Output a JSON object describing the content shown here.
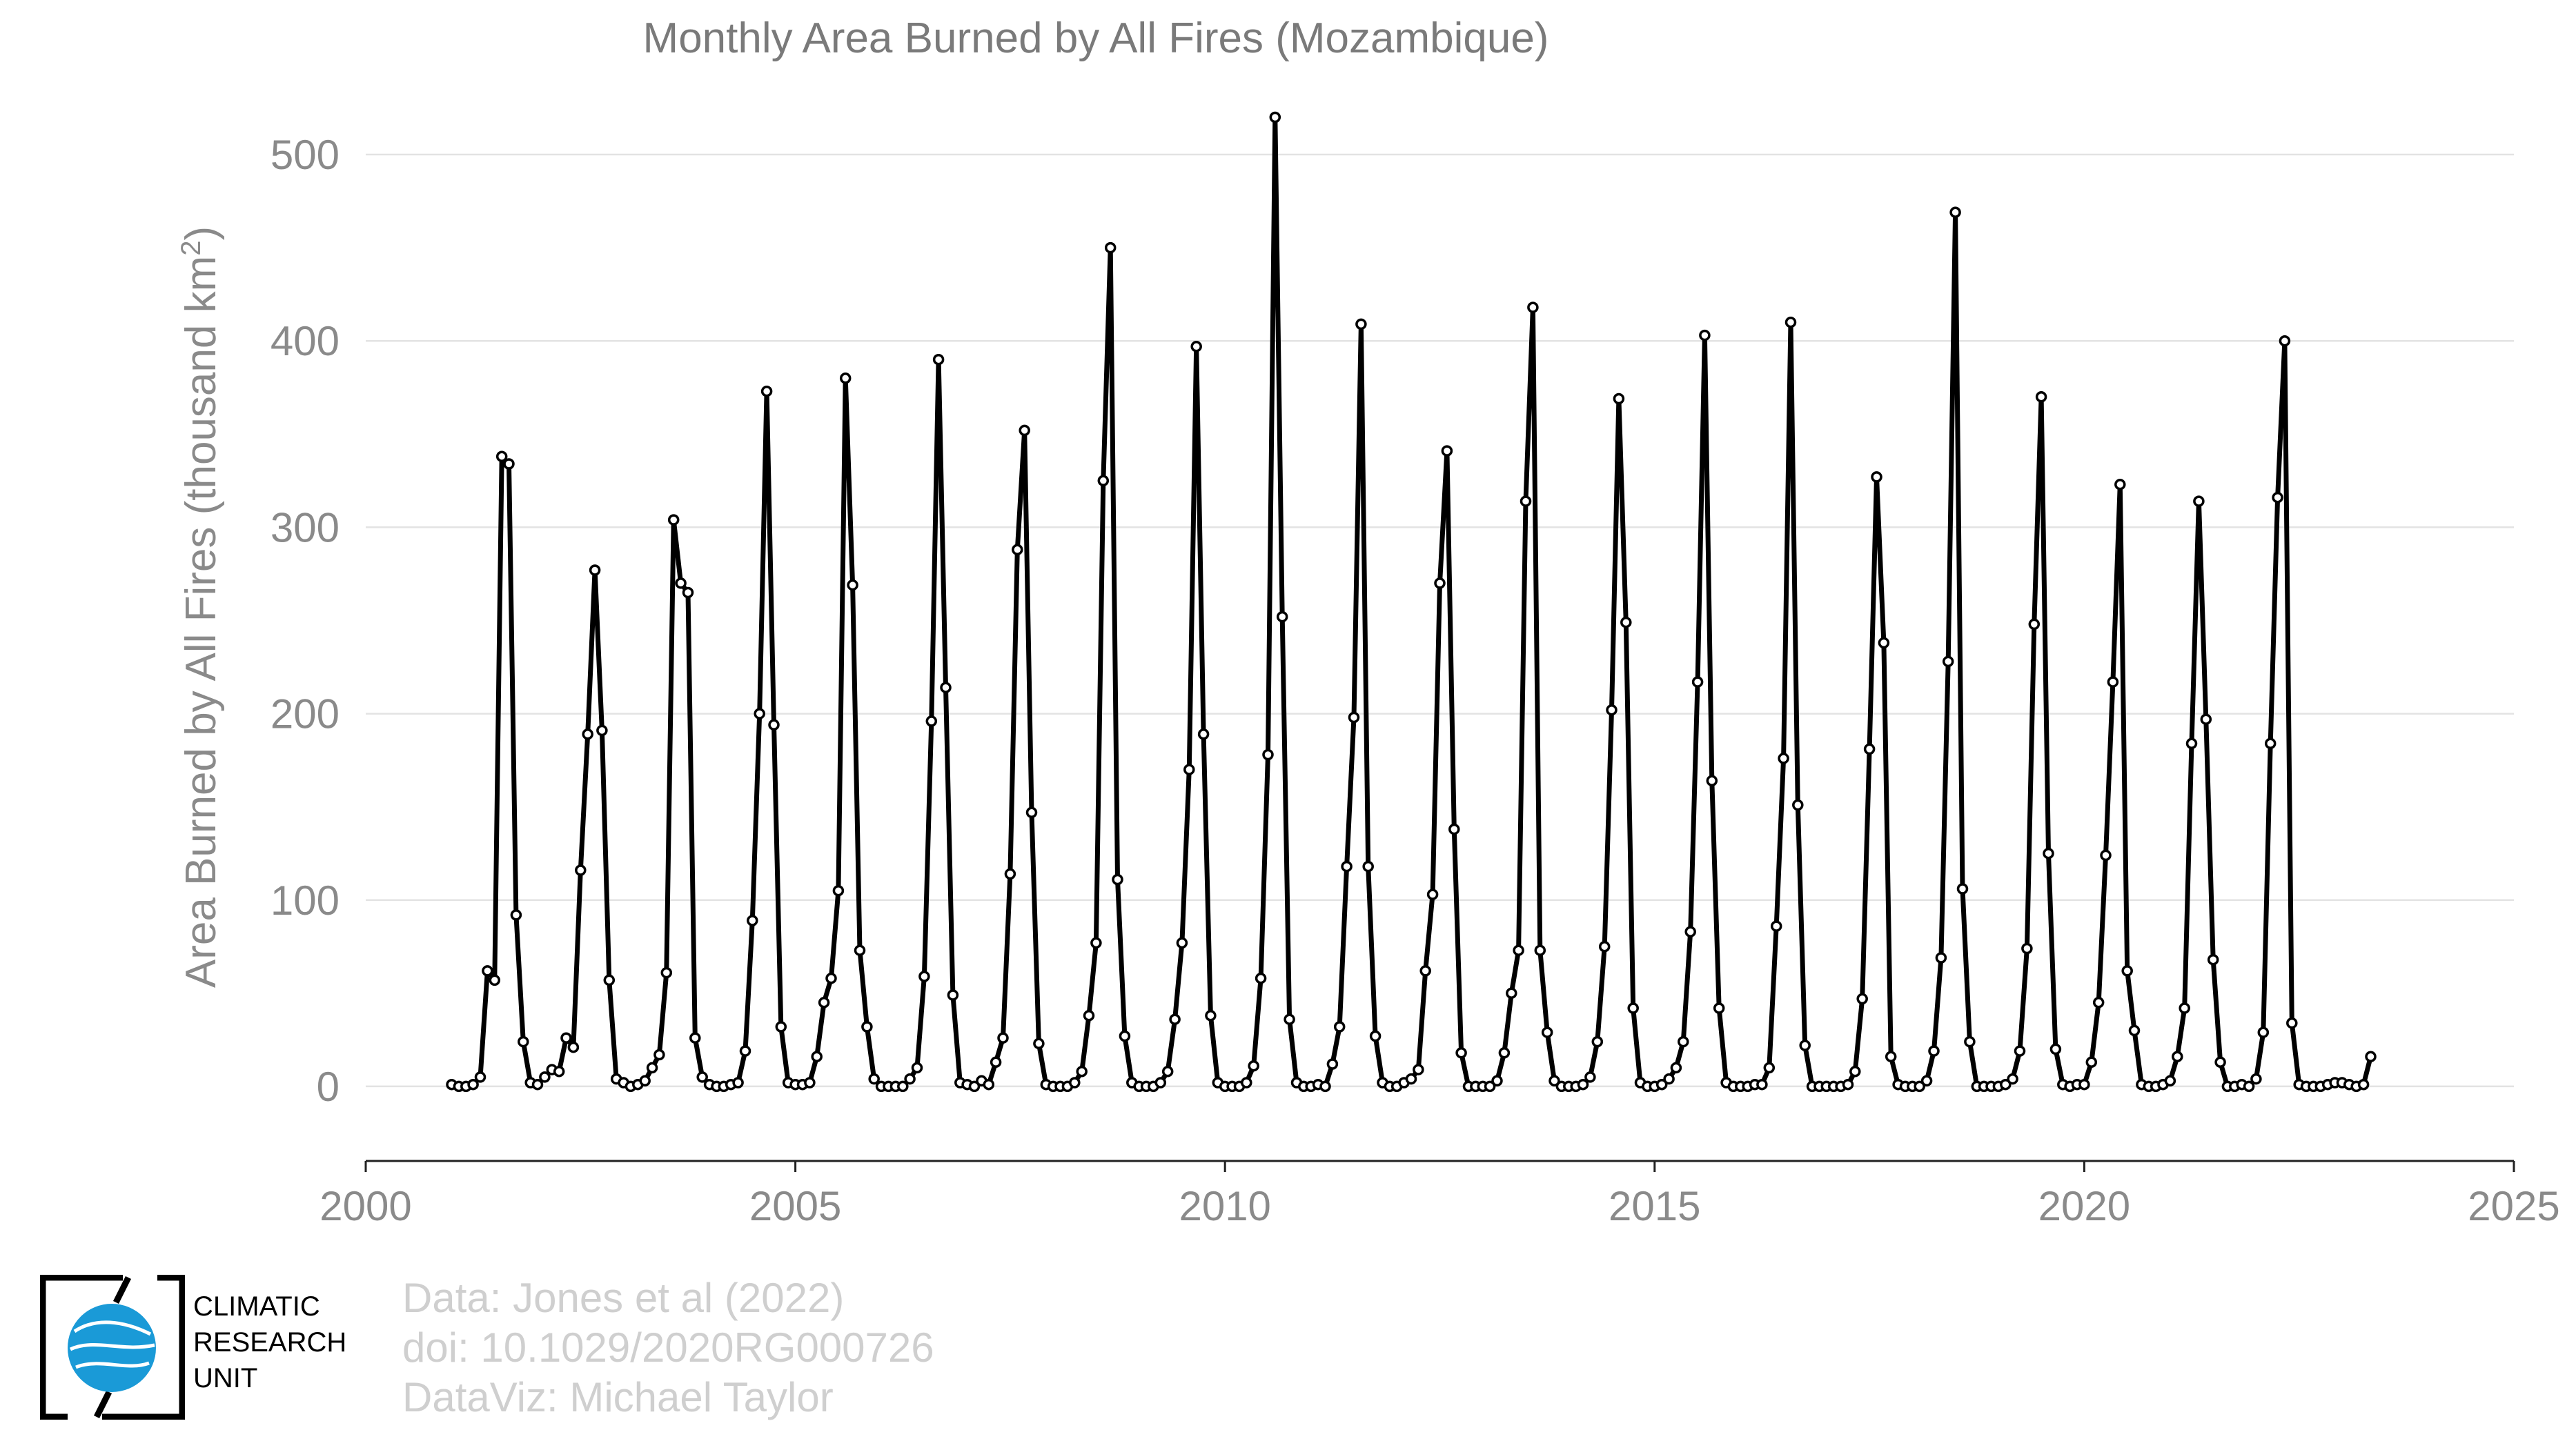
{
  "chart_data": {
    "type": "line",
    "title": "Monthly Area Burned by All Fires (Mozambique)",
    "ylabel": "Area Burned by All Fires (thousand km",
    "ylabel_superscript": "2",
    "ylabel_suffix": ")",
    "xlabel": "",
    "xlim": [
      2000,
      2025
    ],
    "ylim": [
      -40,
      520
    ],
    "x_ticks": [
      "2000",
      "2005",
      "2010",
      "2015",
      "2020",
      "2025"
    ],
    "y_ticks": [
      "0",
      "100",
      "200",
      "300",
      "400",
      "500"
    ],
    "grid": true,
    "start_year": 2001,
    "start_month": 1,
    "series": [
      {
        "color": "#000000",
        "values": [
          1,
          0,
          0,
          1,
          5,
          62,
          57,
          338,
          334,
          92,
          24,
          2,
          1,
          5,
          9,
          8,
          26,
          21,
          116,
          189,
          277,
          191,
          57,
          4,
          2,
          0,
          1,
          3,
          10,
          17,
          61,
          304,
          270,
          265,
          26,
          5,
          1,
          0,
          0,
          1,
          2,
          19,
          89,
          200,
          373,
          194,
          32,
          2,
          1,
          1,
          2,
          16,
          45,
          58,
          105,
          380,
          269,
          73,
          32,
          4,
          0,
          0,
          0,
          0,
          4,
          10,
          59,
          196,
          390,
          214,
          49,
          2,
          1,
          0,
          3,
          1,
          13,
          26,
          114,
          288,
          352,
          147,
          23,
          1,
          0,
          0,
          0,
          2,
          8,
          38,
          77,
          325,
          450,
          111,
          27,
          2,
          0,
          0,
          0,
          2,
          8,
          36,
          77,
          170,
          397,
          189,
          38,
          2,
          0,
          0,
          0,
          2,
          11,
          58,
          178,
          520,
          252,
          36,
          2,
          0,
          0,
          1,
          0,
          12,
          32,
          118,
          198,
          409,
          118,
          27,
          2,
          0,
          0,
          2,
          4,
          9,
          62,
          103,
          270,
          341,
          138,
          18,
          0,
          0,
          0,
          0,
          3,
          18,
          50,
          73,
          314,
          418,
          73,
          29,
          3,
          0,
          0,
          0,
          1,
          5,
          24,
          75,
          202,
          369,
          249,
          42,
          2,
          0,
          0,
          1,
          4,
          10,
          24,
          83,
          217,
          403,
          164,
          42,
          2,
          0,
          0,
          0,
          1,
          1,
          10,
          86,
          176,
          410,
          151,
          22,
          0,
          0,
          0,
          0,
          0,
          1,
          8,
          47,
          181,
          327,
          238,
          16,
          1,
          0,
          0,
          0,
          3,
          19,
          69,
          228,
          469,
          106,
          24,
          0,
          0,
          0,
          0,
          1,
          4,
          19,
          74,
          248,
          370,
          125,
          20,
          1,
          0,
          1,
          1,
          13,
          45,
          124,
          217,
          323,
          62,
          30,
          1,
          0,
          0,
          1,
          3,
          16,
          42,
          184,
          314,
          197,
          68,
          13,
          0,
          0,
          1,
          0,
          4,
          29,
          184,
          316,
          400,
          34,
          1,
          0,
          0,
          0,
          1,
          2,
          2,
          1,
          0,
          1,
          16
        ]
      }
    ]
  },
  "logo": {
    "line1": "CLIMATIC",
    "line2": "RESEARCH",
    "line3": "UNIT"
  },
  "credits": {
    "line1": "Data: Jones et al (2022)",
    "line2": "doi: 10.1029/2020RG000726",
    "line3": "DataViz: Michael Taylor"
  },
  "colors": {
    "logo_blue": "#1a9ad7",
    "logo_frame": "#000000"
  }
}
